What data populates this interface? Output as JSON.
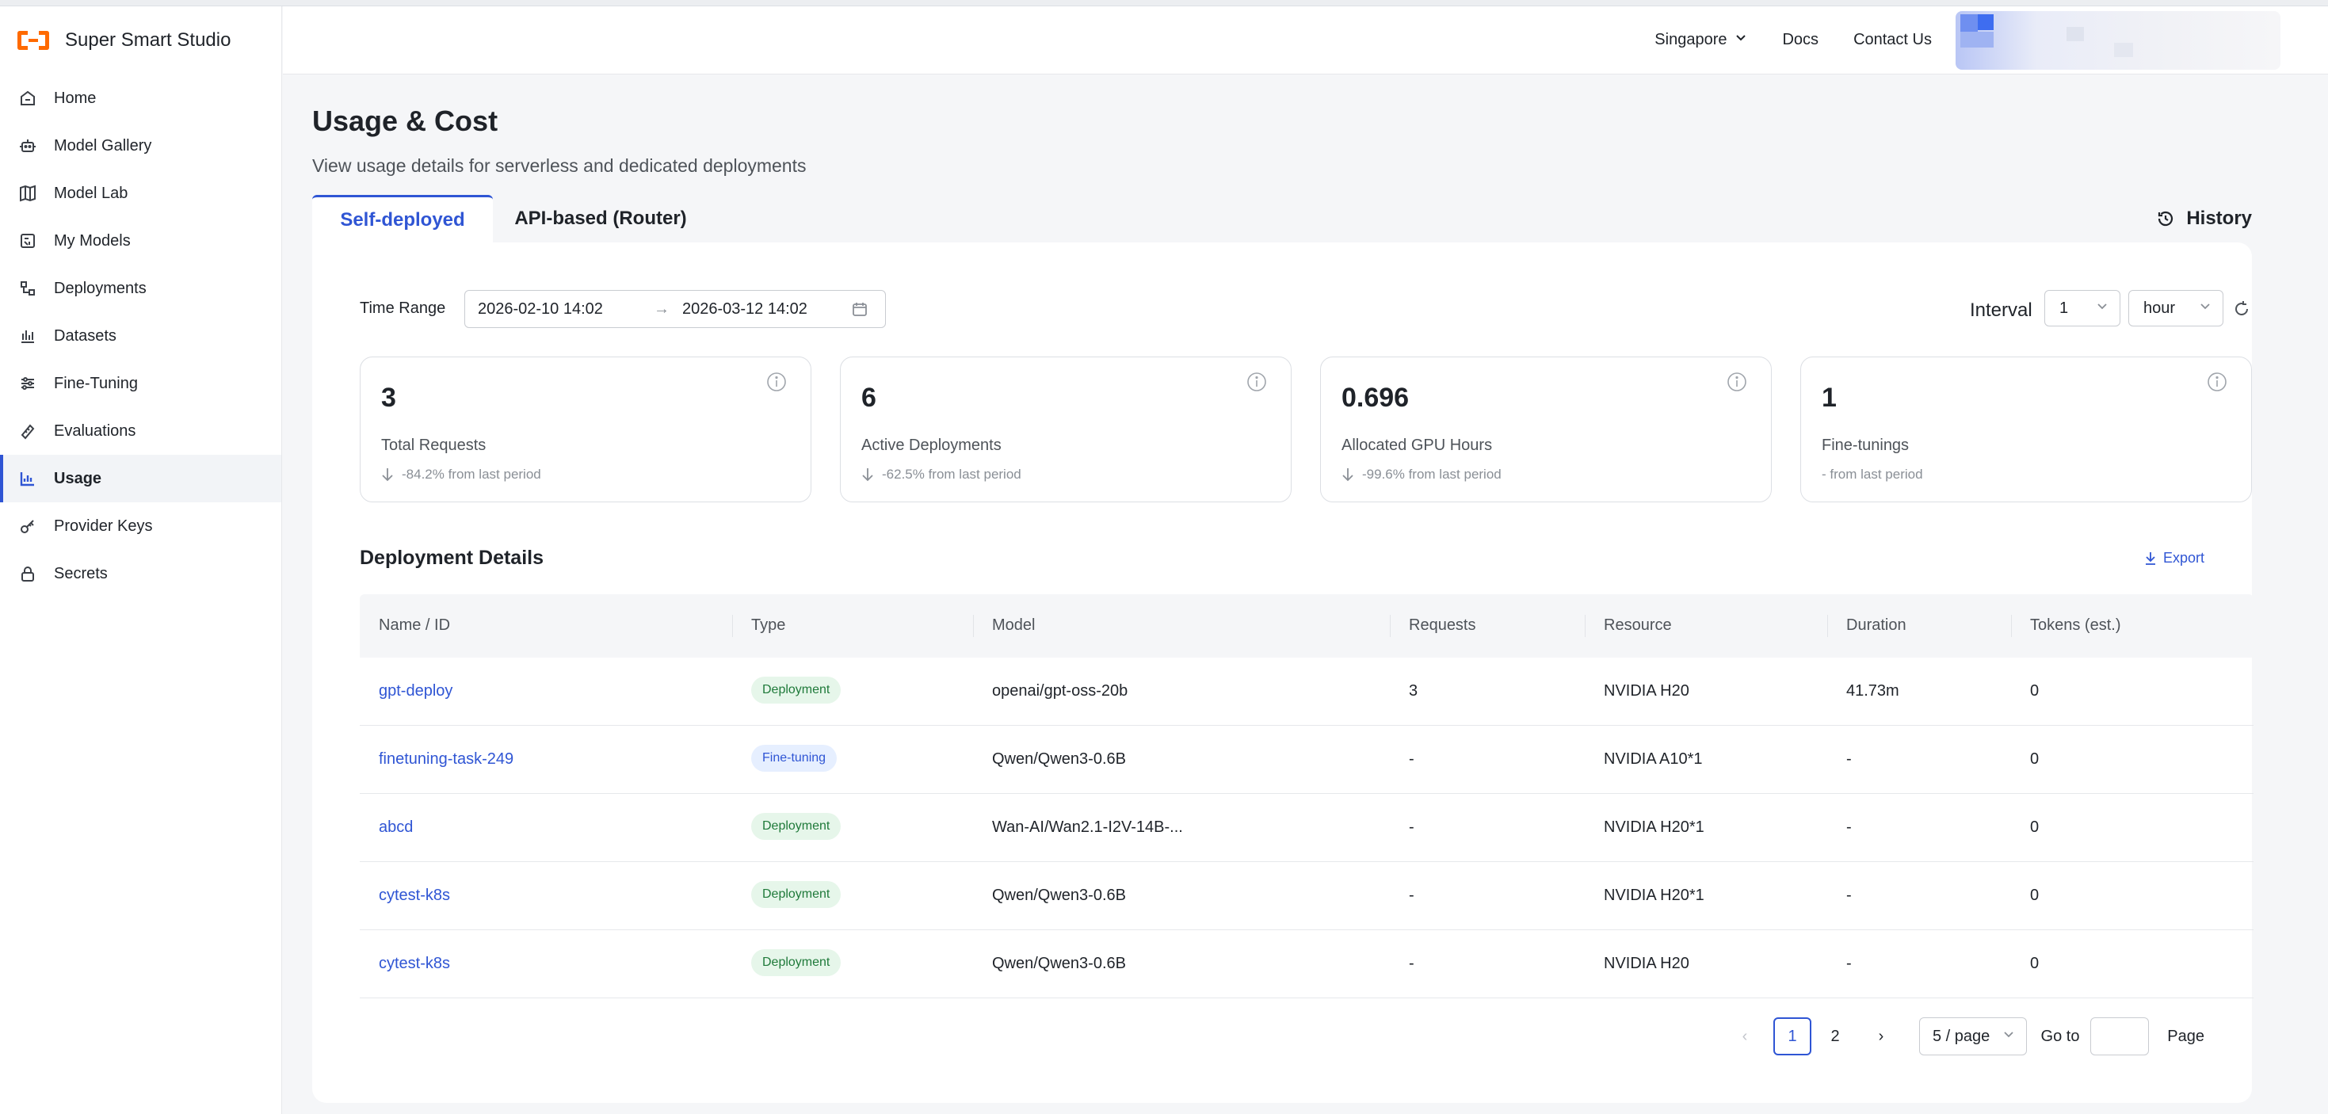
{
  "brand": {
    "name": "Super Smart Studio"
  },
  "sidebar": {
    "items": [
      {
        "label": "Home",
        "icon": "home-icon"
      },
      {
        "label": "Model Gallery",
        "icon": "robot-icon"
      },
      {
        "label": "Model Lab",
        "icon": "map-icon"
      },
      {
        "label": "My Models",
        "icon": "model-icon"
      },
      {
        "label": "Deployments",
        "icon": "deploy-icon"
      },
      {
        "label": "Datasets",
        "icon": "dataset-icon"
      },
      {
        "label": "Fine-Tuning",
        "icon": "sliders-icon"
      },
      {
        "label": "Evaluations",
        "icon": "ruler-icon"
      },
      {
        "label": "Usage",
        "icon": "chart-icon",
        "active": true
      },
      {
        "label": "Provider Keys",
        "icon": "key-icon"
      },
      {
        "label": "Secrets",
        "icon": "lock-icon"
      }
    ]
  },
  "header": {
    "region": "Singapore",
    "docs": "Docs",
    "contact": "Contact Us"
  },
  "page": {
    "title": "Usage & Cost",
    "subtitle": "View usage details for serverless and dedicated deployments"
  },
  "tabs": [
    {
      "label": "Self-deployed",
      "active": true
    },
    {
      "label": "API-based (Router)",
      "active": false
    }
  ],
  "history_label": "History",
  "filters": {
    "time_range_label": "Time Range",
    "from": "2026-02-10 14:02",
    "arrow": "→",
    "to": "2026-03-12 14:02",
    "interval_label": "Interval",
    "interval_value": "1",
    "interval_unit": "hour"
  },
  "stats": [
    {
      "value": "3",
      "label": "Total Requests",
      "trend": "-84.2% from last period",
      "direction": "down"
    },
    {
      "value": "6",
      "label": "Active Deployments",
      "trend": "-62.5% from last period",
      "direction": "down"
    },
    {
      "value": "0.696",
      "label": "Allocated GPU Hours",
      "trend": "-99.6% from last period",
      "direction": "down"
    },
    {
      "value": "1",
      "label": "Fine-tunings",
      "trend": "- from last period",
      "direction": "none"
    }
  ],
  "details": {
    "title": "Deployment Details",
    "export_label": "Export",
    "columns": [
      "Name / ID",
      "Type",
      "Model",
      "Requests",
      "Resource",
      "Duration",
      "Tokens (est.)"
    ],
    "rows": [
      {
        "name": "gpt-deploy",
        "type": "Deployment",
        "model": "openai/gpt-oss-20b",
        "requests": "3",
        "resource": "NVIDIA H20",
        "duration": "41.73m",
        "tokens": "0"
      },
      {
        "name": "finetuning-task-249",
        "type": "Fine-tuning",
        "model": "Qwen/Qwen3-0.6B",
        "requests": "-",
        "resource": "NVIDIA A10*1",
        "duration": "-",
        "tokens": "0"
      },
      {
        "name": "abcd",
        "type": "Deployment",
        "model": "Wan-AI/Wan2.1-I2V-14B-...",
        "requests": "-",
        "resource": "NVIDIA H20*1",
        "duration": "-",
        "tokens": "0"
      },
      {
        "name": "cytest-k8s",
        "type": "Deployment",
        "model": "Qwen/Qwen3-0.6B",
        "requests": "-",
        "resource": "NVIDIA H20*1",
        "duration": "-",
        "tokens": "0"
      },
      {
        "name": "cytest-k8s",
        "type": "Deployment",
        "model": "Qwen/Qwen3-0.6B",
        "requests": "-",
        "resource": "NVIDIA H20",
        "duration": "-",
        "tokens": "0"
      }
    ]
  },
  "pagination": {
    "prev": "‹",
    "pages": [
      "1",
      "2"
    ],
    "current": "1",
    "next": "›",
    "page_size": "5 / page",
    "goto_label": "Go to",
    "page_label": "Page"
  },
  "colors": {
    "accent": "#2f55d4",
    "brand": "#ff6a00",
    "deploy_badge": "#e6f6ea",
    "finetune_badge": "#e6efff"
  }
}
